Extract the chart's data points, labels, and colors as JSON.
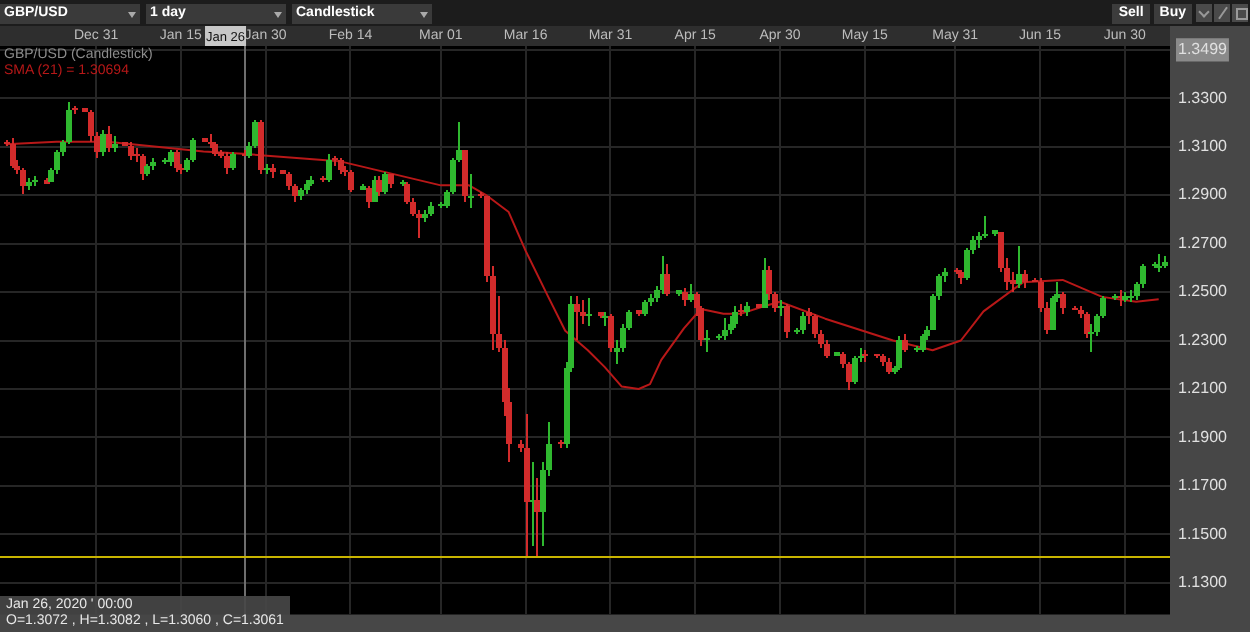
{
  "chart_data": {
    "type": "candlestick",
    "title": "GBP/USD (Candlestick)",
    "legend": "top left",
    "grid": true,
    "xlim": [
      "2019-12-14",
      "2020-07-08"
    ],
    "xticks": [
      {
        "value": "2019-12-31",
        "label": "Dec 31"
      },
      {
        "value": "2020-01-15",
        "label": "Jan 15"
      },
      {
        "value": "2020-01-30",
        "label": "Jan 30"
      },
      {
        "value": "2020-02-14",
        "label": "Feb 14"
      },
      {
        "value": "2020-03-01",
        "label": "Mar 01"
      },
      {
        "value": "2020-03-16",
        "label": "Mar 16"
      },
      {
        "value": "2020-03-31",
        "label": "Mar 31"
      },
      {
        "value": "2020-04-15",
        "label": "Apr 15"
      },
      {
        "value": "2020-04-30",
        "label": "Apr 30"
      },
      {
        "value": "2020-05-15",
        "label": "May 15"
      },
      {
        "value": "2020-05-31",
        "label": "May 31"
      },
      {
        "value": "2020-06-15",
        "label": "Jun 15"
      },
      {
        "value": "2020-06-30",
        "label": "Jun 30"
      }
    ],
    "ylim": [
      1.117,
      1.3515
    ],
    "yticks": [
      {
        "value": 1.13,
        "label": "1.1300"
      },
      {
        "value": 1.15,
        "label": "1.1500"
      },
      {
        "value": 1.17,
        "label": "1.1700"
      },
      {
        "value": 1.19,
        "label": "1.1900"
      },
      {
        "value": 1.21,
        "label": "1.2100"
      },
      {
        "value": 1.23,
        "label": "1.2300"
      },
      {
        "value": 1.25,
        "label": "1.2500"
      },
      {
        "value": 1.27,
        "label": "1.2700"
      },
      {
        "value": 1.29,
        "label": "1.2900"
      },
      {
        "value": 1.31,
        "label": "1.3100"
      },
      {
        "value": 1.33,
        "label": "1.3300"
      },
      1.3499
    ],
    "ref_lines": [
      {
        "axis": "x",
        "value": "2020-01-26",
        "label": "Jan 26",
        "color": "#6e6e6e"
      },
      {
        "axis": "y",
        "value": 1.141,
        "color": "#c8b400"
      }
    ],
    "annotations": [
      "GBP/USD",
      "1 day",
      "Candlestick",
      "Sell",
      "Buy",
      "Jan 26, 2020 ' 00:00",
      "O=1.3072 , H=1.3082 , L=1.3060 , C=1.3061"
    ],
    "series": [
      {
        "x": [
          "2019-12-15",
          "2019-12-16",
          "2019-12-17",
          "2019-12-18",
          "2019-12-19",
          "2019-12-20",
          "2019-12-22",
          "2019-12-23",
          "2019-12-24",
          "2019-12-25",
          "2019-12-26",
          "2019-12-27",
          "2019-12-29",
          "2019-12-30",
          "2019-12-31",
          "2020-01-01",
          "2020-01-02",
          "2020-01-03",
          "2020-01-05",
          "2020-01-06",
          "2020-01-07",
          "2020-01-08",
          "2020-01-09",
          "2020-01-10",
          "2020-01-12",
          "2020-01-13",
          "2020-01-14",
          "2020-01-15",
          "2020-01-16",
          "2020-01-17",
          "2020-01-19",
          "2020-01-20",
          "2020-01-21",
          "2020-01-22",
          "2020-01-23",
          "2020-01-24",
          "2020-01-26",
          "2020-01-27",
          "2020-01-28",
          "2020-01-29",
          "2020-01-30",
          "2020-01-31",
          "2020-02-02",
          "2020-02-03",
          "2020-02-04",
          "2020-02-05",
          "2020-02-06",
          "2020-02-07",
          "2020-02-09",
          "2020-02-10",
          "2020-02-11",
          "2020-02-12",
          "2020-02-13",
          "2020-02-14",
          "2020-02-16",
          "2020-02-17",
          "2020-02-18",
          "2020-02-19",
          "2020-02-20",
          "2020-02-21",
          "2020-02-23",
          "2020-02-24",
          "2020-02-25",
          "2020-02-26",
          "2020-02-27",
          "2020-02-28",
          "2020-03-01",
          "2020-03-02",
          "2020-03-03",
          "2020-03-04",
          "2020-03-05",
          "2020-03-06",
          "2020-03-08",
          "2020-03-09",
          "2020-03-10",
          "2020-03-11",
          "2020-03-12",
          "2020-03-13",
          "2020-03-15",
          "2020-03-16",
          "2020-03-17",
          "2020-03-18",
          "2020-03-19",
          "2020-03-20",
          "2020-03-22",
          "2020-03-23",
          "2020-03-24",
          "2020-03-25",
          "2020-03-26",
          "2020-03-27",
          "2020-03-29",
          "2020-03-30",
          "2020-03-31",
          "2020-04-01",
          "2020-04-02",
          "2020-04-03",
          "2020-04-05",
          "2020-04-06",
          "2020-04-07",
          "2020-04-08",
          "2020-04-09",
          "2020-04-10",
          "2020-04-12",
          "2020-04-13",
          "2020-04-14",
          "2020-04-15",
          "2020-04-16",
          "2020-04-17",
          "2020-04-19",
          "2020-04-20",
          "2020-04-21",
          "2020-04-22",
          "2020-04-23",
          "2020-04-24",
          "2020-04-26",
          "2020-04-27",
          "2020-04-28",
          "2020-04-29",
          "2020-04-30",
          "2020-05-01",
          "2020-05-03",
          "2020-05-04",
          "2020-05-05",
          "2020-05-06",
          "2020-05-07",
          "2020-05-08",
          "2020-05-10",
          "2020-05-11",
          "2020-05-12",
          "2020-05-13",
          "2020-05-14",
          "2020-05-15",
          "2020-05-17",
          "2020-05-18",
          "2020-05-19",
          "2020-05-20",
          "2020-05-21",
          "2020-05-22",
          "2020-05-24",
          "2020-05-25",
          "2020-05-26",
          "2020-05-27",
          "2020-05-28",
          "2020-05-29",
          "2020-05-31",
          "2020-06-01",
          "2020-06-02",
          "2020-06-03",
          "2020-06-04",
          "2020-06-05",
          "2020-06-07",
          "2020-06-08",
          "2020-06-09",
          "2020-06-10",
          "2020-06-11",
          "2020-06-12",
          "2020-06-14",
          "2020-06-15",
          "2020-06-16",
          "2020-06-17",
          "2020-06-18",
          "2020-06-19",
          "2020-06-21",
          "2020-06-22",
          "2020-06-23",
          "2020-06-24",
          "2020-06-25",
          "2020-06-26",
          "2020-06-28",
          "2020-06-29",
          "2020-06-30",
          "2020-07-01",
          "2020-07-02",
          "2020-07-03",
          "2020-07-05",
          "2020-07-06",
          "2020-07-07"
        ],
        "ohlc": [
          [
            1.3122,
            1.3128,
            1.3105,
            1.311
          ],
          [
            1.311,
            1.3135,
            1.301,
            1.302
          ],
          [
            1.302,
            1.3045,
            1.2985,
            1.3005
          ],
          [
            1.3005,
            1.3015,
            1.2905,
            1.2935
          ],
          [
            1.2935,
            1.297,
            1.292,
            1.295
          ],
          [
            1.295,
            1.2975,
            1.2935,
            1.296
          ],
          [
            1.296,
            1.2968,
            1.2944,
            1.2948
          ],
          [
            1.2958,
            1.301,
            1.295,
            1.3
          ],
          [
            1.3,
            1.3085,
            1.299,
            1.3075
          ],
          [
            1.3075,
            1.3125,
            1.306,
            1.3115
          ],
          [
            1.3115,
            1.3285,
            1.311,
            1.3255
          ],
          [
            1.3262,
            1.327,
            1.3235,
            1.325
          ],
          [
            1.3257,
            1.3262,
            1.324,
            1.3245
          ],
          [
            1.3245,
            1.325,
            1.312,
            1.3145
          ],
          [
            1.3145,
            1.316,
            1.305,
            1.308
          ],
          [
            1.308,
            1.3165,
            1.3065,
            1.3155
          ],
          [
            1.3155,
            1.3185,
            1.308,
            1.3095
          ],
          [
            1.3095,
            1.314,
            1.3075,
            1.311
          ],
          [
            1.3117,
            1.3122,
            1.31,
            1.3105
          ],
          [
            1.3105,
            1.312,
            1.3045,
            1.3065
          ],
          [
            1.3072,
            1.3095,
            1.304,
            1.306
          ],
          [
            1.306,
            1.307,
            1.296,
            1.299
          ],
          [
            1.299,
            1.303,
            1.2975,
            1.302
          ],
          [
            1.302,
            1.305,
            1.3,
            1.3035
          ],
          [
            1.3035,
            1.3052,
            1.3028,
            1.3047
          ],
          [
            1.3038,
            1.3085,
            1.302,
            1.3075
          ],
          [
            1.3075,
            1.3085,
            1.2995,
            1.3015
          ],
          [
            1.3015,
            1.303,
            1.2985,
            1.3005
          ],
          [
            1.3005,
            1.3055,
            1.2995,
            1.3045
          ],
          [
            1.3045,
            1.3135,
            1.3035,
            1.3125
          ],
          [
            1.3134,
            1.3138,
            1.3118,
            1.3122
          ],
          [
            1.3122,
            1.315,
            1.3095,
            1.311
          ],
          [
            1.311,
            1.312,
            1.306,
            1.307
          ],
          [
            1.3077,
            1.309,
            1.305,
            1.3065
          ],
          [
            1.3065,
            1.3075,
            1.299,
            1.301
          ],
          [
            1.301,
            1.308,
            1.3,
            1.3072
          ],
          [
            1.3072,
            1.3082,
            1.306,
            1.3061
          ],
          [
            1.3061,
            1.3115,
            1.305,
            1.3105
          ],
          [
            1.3105,
            1.321,
            1.3095,
            1.3205
          ],
          [
            1.3205,
            1.321,
            1.299,
            1.3005
          ],
          [
            1.3005,
            1.303,
            1.2985,
            1.3015
          ],
          [
            1.3015,
            1.3025,
            1.297,
            1.2995
          ],
          [
            1.3002,
            1.3006,
            1.2985,
            1.299
          ],
          [
            1.299,
            1.2995,
            1.292,
            1.2935
          ],
          [
            1.2935,
            1.2945,
            1.287,
            1.2895
          ],
          [
            1.2895,
            1.293,
            1.288,
            1.292
          ],
          [
            1.292,
            1.296,
            1.2905,
            1.2945
          ],
          [
            1.2945,
            1.2975,
            1.2935,
            1.2965
          ],
          [
            1.2974,
            1.2978,
            1.2958,
            1.2962
          ],
          [
            1.2962,
            1.307,
            1.2955,
            1.3045
          ],
          [
            1.3057,
            1.306,
            1.302,
            1.3045
          ],
          [
            1.3045,
            1.305,
            1.299,
            1.3005
          ],
          [
            1.3005,
            1.302,
            1.2975,
            1.2995
          ],
          [
            1.2995,
            1.3,
            1.2915,
            1.2925
          ],
          [
            1.2925,
            1.2942,
            1.2918,
            1.2937
          ],
          [
            1.2928,
            1.2935,
            1.285,
            1.2875
          ],
          [
            1.2875,
            1.2975,
            1.287,
            1.2965
          ],
          [
            1.2965,
            1.298,
            1.29,
            1.2915
          ],
          [
            1.2915,
            1.2995,
            1.2905,
            1.2985
          ],
          [
            1.2985,
            1.299,
            1.293,
            1.2945
          ],
          [
            1.2945,
            1.2962,
            1.2938,
            1.2957
          ],
          [
            1.2948,
            1.2955,
            1.286,
            1.2875
          ],
          [
            1.2875,
            1.2885,
            1.281,
            1.2825
          ],
          [
            1.2825,
            1.2835,
            1.2725,
            1.2805
          ],
          [
            1.2805,
            1.284,
            1.279,
            1.2825
          ],
          [
            1.2825,
            1.287,
            1.281,
            1.2855
          ],
          [
            1.2855,
            1.2872,
            1.2848,
            1.2867
          ],
          [
            1.2858,
            1.292,
            1.285,
            1.2915
          ],
          [
            1.2915,
            1.305,
            1.2905,
            1.3045
          ],
          [
            1.3045,
            1.32,
            1.3035,
            1.3085
          ],
          [
            1.3085,
            1.309,
            1.2875,
            1.29
          ],
          [
            1.2885,
            1.2985,
            1.285,
            1.29
          ],
          [
            1.2907,
            1.291,
            1.2885,
            1.2895
          ],
          [
            1.2895,
            1.29,
            1.254,
            1.257
          ],
          [
            1.257,
            1.261,
            1.226,
            1.2325
          ],
          [
            1.2325,
            1.2485,
            1.225,
            1.2265
          ],
          [
            1.2265,
            1.23,
            1.199,
            1.205
          ],
          [
            1.205,
            1.21,
            1.18,
            1.187
          ],
          [
            1.1872,
            1.189,
            1.184,
            1.186
          ],
          [
            1.186,
            1.2,
            1.141,
            1.1635
          ],
          [
            1.1635,
            1.18,
            1.145,
            1.1645
          ],
          [
            1.1645,
            1.173,
            1.141,
            1.159
          ],
          [
            1.159,
            1.18,
            1.145,
            1.1765
          ],
          [
            1.1765,
            1.196,
            1.174,
            1.1875
          ],
          [
            1.1882,
            1.189,
            1.1855,
            1.187
          ],
          [
            1.187,
            1.221,
            1.186,
            1.2185
          ],
          [
            1.2185,
            1.2485,
            1.217,
            1.245
          ],
          [
            1.245,
            1.2485,
            1.23,
            1.2415
          ],
          [
            1.2418,
            1.247,
            1.237,
            1.2405
          ],
          [
            1.2398,
            1.2475,
            1.236,
            1.241
          ],
          [
            1.2417,
            1.242,
            1.2395,
            1.2405
          ],
          [
            1.2393,
            1.242,
            1.236,
            1.2405
          ],
          [
            1.2405,
            1.241,
            1.225,
            1.2265
          ],
          [
            1.2253,
            1.23,
            1.22,
            1.2265
          ],
          [
            1.2265,
            1.2365,
            1.2255,
            1.2355
          ],
          [
            1.2355,
            1.2425,
            1.234,
            1.2415
          ],
          [
            1.2424,
            1.2428,
            1.2405,
            1.2412
          ],
          [
            1.2412,
            1.247,
            1.24,
            1.246
          ],
          [
            1.246,
            1.249,
            1.244,
            1.2475
          ],
          [
            1.2475,
            1.2525,
            1.2455,
            1.251
          ],
          [
            1.251,
            1.265,
            1.2495,
            1.2575
          ],
          [
            1.2575,
            1.2615,
            1.248,
            1.2495
          ],
          [
            1.2495,
            1.2512,
            1.2485,
            1.2507
          ],
          [
            1.2498,
            1.252,
            1.244,
            1.247
          ],
          [
            1.247,
            1.253,
            1.246,
            1.249
          ],
          [
            1.249,
            1.25,
            1.24,
            1.243
          ],
          [
            1.243,
            1.244,
            1.228,
            1.23
          ],
          [
            1.2298,
            1.234,
            1.225,
            1.231
          ],
          [
            1.231,
            1.2326,
            1.2305,
            1.2322
          ],
          [
            1.2315,
            1.239,
            1.23,
            1.2345
          ],
          [
            1.2345,
            1.24,
            1.233,
            1.2365
          ],
          [
            1.2365,
            1.244,
            1.235,
            1.242
          ],
          [
            1.2427,
            1.245,
            1.24,
            1.2415
          ],
          [
            1.2415,
            1.246,
            1.24,
            1.244
          ],
          [
            1.2448,
            1.2452,
            1.2432,
            1.2436
          ],
          [
            1.2438,
            1.264,
            1.243,
            1.259
          ],
          [
            1.259,
            1.261,
            1.247,
            1.249
          ],
          [
            1.249,
            1.25,
            1.242,
            1.2435
          ],
          [
            1.2433,
            1.247,
            1.24,
            1.2445
          ],
          [
            1.2445,
            1.245,
            1.231,
            1.2335
          ],
          [
            1.2335,
            1.2351,
            1.2325,
            1.2347
          ],
          [
            1.234,
            1.242,
            1.233,
            1.2405
          ],
          [
            1.2417,
            1.243,
            1.237,
            1.2405
          ],
          [
            1.2405,
            1.241,
            1.231,
            1.2325
          ],
          [
            1.2325,
            1.234,
            1.227,
            1.2285
          ],
          [
            1.2285,
            1.23,
            1.2225,
            1.224
          ],
          [
            1.224,
            1.2256,
            1.2235,
            1.2252
          ],
          [
            1.2242,
            1.225,
            1.219,
            1.2205
          ],
          [
            1.2205,
            1.2215,
            1.2095,
            1.213
          ],
          [
            1.213,
            1.224,
            1.212,
            1.223
          ],
          [
            1.2228,
            1.227,
            1.2215,
            1.224
          ],
          [
            1.2247,
            1.226,
            1.2215,
            1.2235
          ],
          [
            1.2244,
            1.2248,
            1.2228,
            1.2232
          ],
          [
            1.2232,
            1.2245,
            1.2195,
            1.2215
          ],
          [
            1.2215,
            1.2225,
            1.216,
            1.217
          ],
          [
            1.217,
            1.2195,
            1.216,
            1.2185
          ],
          [
            1.2185,
            1.2315,
            1.2175,
            1.2305
          ],
          [
            1.2305,
            1.233,
            1.225,
            1.226
          ],
          [
            1.226,
            1.2276,
            1.2252,
            1.2272
          ],
          [
            1.2262,
            1.233,
            1.2255,
            1.232
          ],
          [
            1.232,
            1.236,
            1.23,
            1.2345
          ],
          [
            1.2345,
            1.2495,
            1.234,
            1.2485
          ],
          [
            1.2485,
            1.2575,
            1.247,
            1.2565
          ],
          [
            1.2565,
            1.26,
            1.254,
            1.2585
          ],
          [
            1.2594,
            1.2598,
            1.2578,
            1.2582
          ],
          [
            1.2582,
            1.259,
            1.2535,
            1.256
          ],
          [
            1.256,
            1.268,
            1.255,
            1.267
          ],
          [
            1.267,
            1.273,
            1.2655,
            1.2715
          ],
          [
            1.2715,
            1.2745,
            1.268,
            1.2735
          ],
          [
            1.2728,
            1.281,
            1.272,
            1.274
          ],
          [
            1.274,
            1.2756,
            1.2732,
            1.2752
          ],
          [
            1.2744,
            1.275,
            1.258,
            1.2595
          ],
          [
            1.2595,
            1.264,
            1.251,
            1.2545
          ],
          [
            1.2547,
            1.258,
            1.25,
            1.2535
          ],
          [
            1.2535,
            1.269,
            1.252,
            1.2575
          ],
          [
            1.2575,
            1.259,
            1.252,
            1.2545
          ],
          [
            1.2552,
            1.2556,
            1.2538,
            1.254
          ],
          [
            1.254,
            1.256,
            1.242,
            1.2435
          ],
          [
            1.2435,
            1.246,
            1.233,
            1.2345
          ],
          [
            1.2345,
            1.2485,
            1.234,
            1.2475
          ],
          [
            1.2475,
            1.254,
            1.246,
            1.249
          ],
          [
            1.249,
            1.25,
            1.241,
            1.243
          ],
          [
            1.2438,
            1.2442,
            1.2422,
            1.2426
          ],
          [
            1.2428,
            1.244,
            1.239,
            1.241
          ],
          [
            1.241,
            1.242,
            1.231,
            1.233
          ],
          [
            1.2323,
            1.2365,
            1.225,
            1.2335
          ],
          [
            1.2335,
            1.241,
            1.232,
            1.24
          ],
          [
            1.24,
            1.248,
            1.239,
            1.2475
          ],
          [
            1.2475,
            1.2492,
            1.2468,
            1.2487
          ],
          [
            1.2487,
            1.251,
            1.244,
            1.2475
          ],
          [
            1.2468,
            1.25,
            1.2455,
            1.248
          ],
          [
            1.2473,
            1.251,
            1.246,
            1.2485
          ],
          [
            1.2485,
            1.254,
            1.247,
            1.253
          ],
          [
            1.253,
            1.2615,
            1.252,
            1.2605
          ],
          [
            1.2605,
            1.2622,
            1.2598,
            1.2617
          ],
          [
            1.2598,
            1.266,
            1.258,
            1.261
          ],
          [
            1.2608,
            1.265,
            1.26,
            1.262
          ]
        ]
      },
      {
        "name": "SMA (21) = 1.30694",
        "type": "line",
        "color": "#b81818",
        "x": [
          "2019-12-15",
          "2019-12-24",
          "2020-01-02",
          "2020-01-19",
          "2020-01-26",
          "2020-02-12",
          "2020-03-01",
          "2020-03-06",
          "2020-03-09",
          "2020-03-13",
          "2020-03-16",
          "2020-03-20",
          "2020-03-23",
          "2020-03-27",
          "2020-03-30",
          "2020-04-02",
          "2020-04-05",
          "2020-04-07",
          "2020-04-09",
          "2020-04-13",
          "2020-04-16",
          "2020-04-20",
          "2020-04-23",
          "2020-04-27",
          "2020-04-30",
          "2020-05-08",
          "2020-05-20",
          "2020-05-27",
          "2020-06-01",
          "2020-06-05",
          "2020-06-12",
          "2020-06-19",
          "2020-06-26",
          "2020-07-02",
          "2020-07-06"
        ],
        "values": [
          1.311,
          1.312,
          1.312,
          1.308,
          1.307,
          1.304,
          1.294,
          1.294,
          1.29,
          1.283,
          1.267,
          1.248,
          1.234,
          1.226,
          1.219,
          1.211,
          1.21,
          1.212,
          1.222,
          1.235,
          1.243,
          1.241,
          1.241,
          1.244,
          1.246,
          1.239,
          1.23,
          1.226,
          1.23,
          1.242,
          1.254,
          1.255,
          1.248,
          1.246,
          1.247
        ]
      }
    ]
  }
}
